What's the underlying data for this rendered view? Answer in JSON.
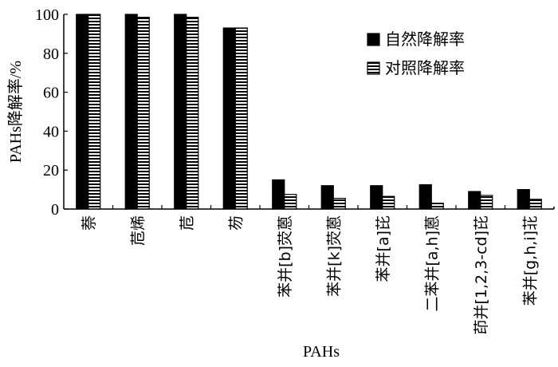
{
  "chart_data": {
    "type": "bar",
    "title": "",
    "xlabel": "PAHs",
    "ylabel": "PAHs降解率/%",
    "ylim": [
      0,
      100
    ],
    "yticks": [
      0,
      20,
      40,
      60,
      80,
      100
    ],
    "grid": false,
    "legend_position": "top-right",
    "categories": [
      "萘",
      "苊烯",
      "苊",
      "芴",
      "苯并[b]荧蒽",
      "苯并[k]荧蒽",
      "苯并[a]芘",
      "二苯并[a,h]蒽",
      "茚并[1,2,3-cd]芘",
      "苯并[g,h,i]苝"
    ],
    "series": [
      {
        "name": "自然降解率",
        "pattern": "solid",
        "color": "#000000",
        "values": [
          100,
          100,
          100,
          93,
          15,
          12,
          12,
          12.5,
          9,
          10
        ]
      },
      {
        "name": "对照降解率",
        "pattern": "horizontal-stripes",
        "color": "#000000",
        "values": [
          100,
          98.5,
          98.5,
          93,
          7.5,
          5.5,
          6.5,
          3,
          7,
          5
        ]
      }
    ]
  }
}
